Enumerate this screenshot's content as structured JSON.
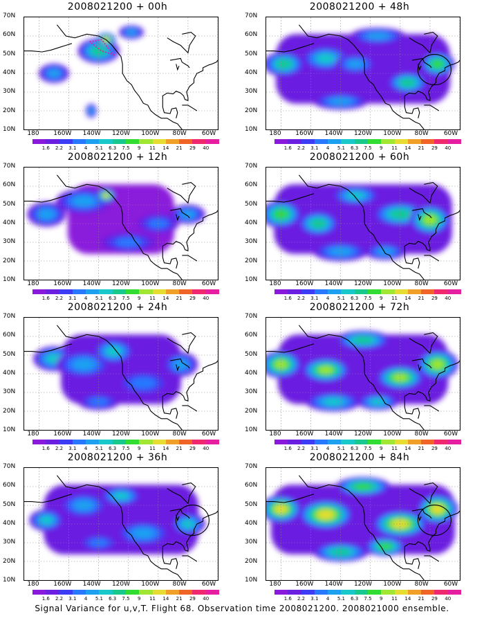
{
  "panels": [
    {
      "title": "2008021200 + 00h",
      "level": 0,
      "circle": false
    },
    {
      "title": "2008021200 + 48h",
      "level": 4,
      "circle": true
    },
    {
      "title": "2008021200 + 12h",
      "level": 1,
      "circle": false
    },
    {
      "title": "2008021200 + 60h",
      "level": 5,
      "circle": false
    },
    {
      "title": "2008021200 + 24h",
      "level": 2,
      "circle": false
    },
    {
      "title": "2008021200 + 72h",
      "level": 6,
      "circle": false
    },
    {
      "title": "2008021200 + 36h",
      "level": 3,
      "circle": true
    },
    {
      "title": "2008021200 + 84h",
      "level": 7,
      "circle": true
    }
  ],
  "lat_labels": [
    "70N",
    "60N",
    "50N",
    "40N",
    "30N",
    "20N",
    "10N"
  ],
  "lon_labels": [
    "180",
    "160W",
    "140W",
    "120W",
    "100W",
    "80W",
    "60W"
  ],
  "colorbar": {
    "labels": [
      "1.6",
      "2.2",
      "3.1",
      "4",
      "5.1",
      "6.3",
      "7.5",
      "9",
      "11",
      "14",
      "21",
      "29",
      "40"
    ],
    "colors": [
      "#8a1adb",
      "#6b1fe0",
      "#3c3cf5",
      "#2878ff",
      "#1ea0f0",
      "#19c8c8",
      "#19c88c",
      "#32dc32",
      "#a0e632",
      "#e6dc32",
      "#f0a028",
      "#f06428",
      "#f0286e",
      "#e61ea0"
    ]
  },
  "caption": "Signal Variance for u,v,T. Flight 68. Observation time 2008021200. 2008021000 ensemble."
}
